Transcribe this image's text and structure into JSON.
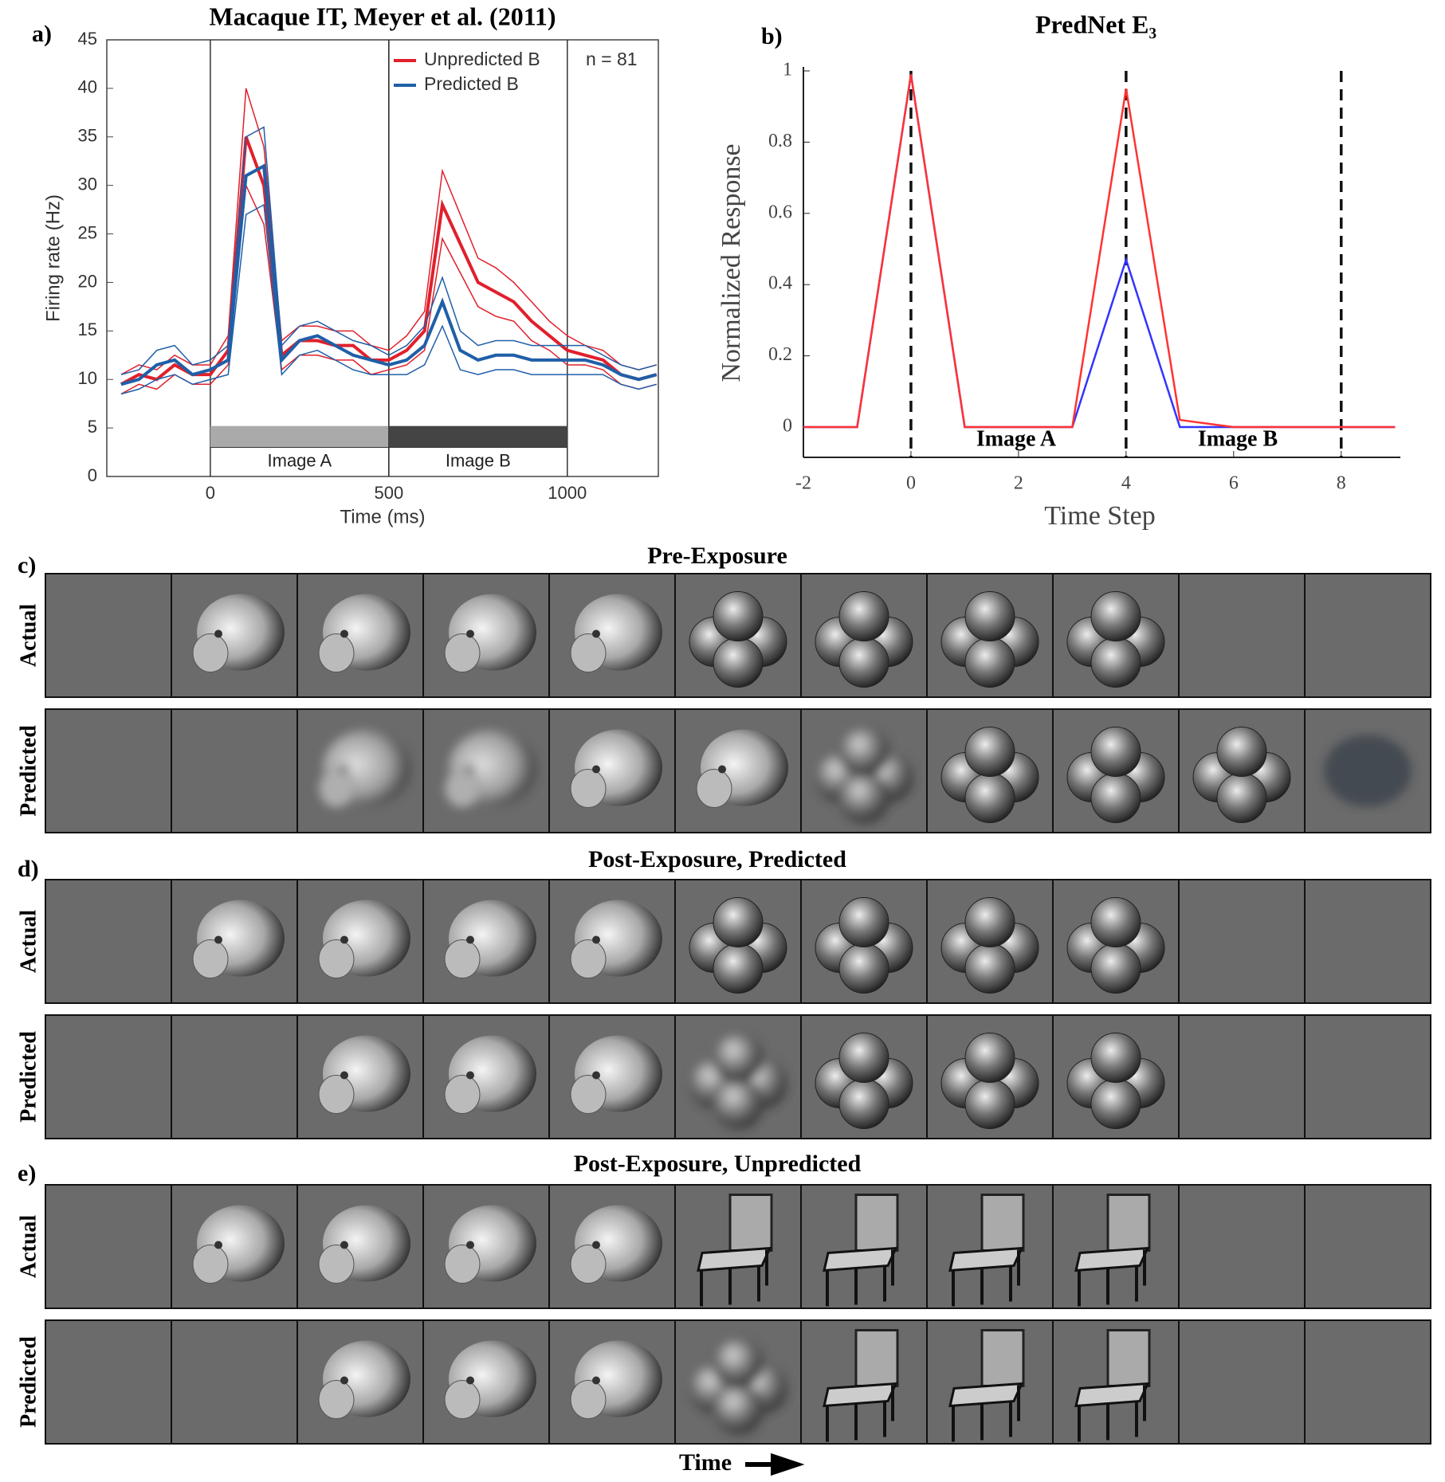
{
  "chart_data": [
    {
      "type": "line",
      "panel_label": "a)",
      "title": "Macaque IT, Meyer et al. (2011)",
      "xlabel": "Time (ms)",
      "ylabel": "Firing rate (Hz)",
      "annotation": "n = 81",
      "x": [
        -250,
        -200,
        -150,
        -100,
        -50,
        0,
        50,
        100,
        150,
        200,
        250,
        300,
        350,
        400,
        450,
        500,
        550,
        600,
        650,
        700,
        750,
        800,
        850,
        900,
        950,
        1000,
        1050,
        1100,
        1150,
        1200,
        1250
      ],
      "series": [
        {
          "name": "Unpredicted B",
          "color": "#e0202c",
          "values": [
            9.5,
            10.5,
            10,
            11.5,
            10.5,
            10.5,
            13,
            35,
            30,
            12.5,
            14,
            14,
            13.5,
            13.5,
            12,
            12,
            13,
            15,
            28,
            24,
            20,
            19,
            18,
            16,
            14.5,
            13,
            12.5,
            12,
            10.5,
            10,
            10.5
          ],
          "error": [
            1,
            1,
            1,
            1,
            1,
            1,
            1.5,
            5,
            4,
            1.5,
            1.5,
            1.5,
            1.5,
            1.5,
            1.5,
            1,
            1.5,
            2,
            3.5,
            3,
            2.5,
            2.5,
            2,
            2,
            1.5,
            1.5,
            1,
            1,
            1,
            1,
            1
          ]
        },
        {
          "name": "Predicted B",
          "color": "#1f5fa8",
          "values": [
            9.5,
            10,
            11.5,
            12,
            10.5,
            11,
            12,
            31,
            32,
            12,
            14,
            14.5,
            13.5,
            12.5,
            12,
            11.5,
            12,
            13.5,
            18,
            13,
            12,
            12.5,
            12.5,
            12,
            12,
            12,
            12,
            11.5,
            10.5,
            10,
            10.5
          ],
          "error": [
            1,
            1,
            1.5,
            1.5,
            1,
            1,
            1.5,
            4,
            4,
            1.5,
            1.5,
            1.5,
            1.5,
            1.5,
            1.5,
            1,
            1.5,
            2,
            2.5,
            2,
            1.5,
            1.5,
            1.5,
            1.5,
            1.5,
            1.5,
            1.5,
            1,
            1,
            1,
            1
          ]
        }
      ],
      "stimuli": [
        {
          "label": "Image A",
          "start": 0,
          "end": 500,
          "color": "#aaaaaa",
          "range": [
            3,
            5.2
          ]
        },
        {
          "label": "Image B",
          "start": 500,
          "end": 1000,
          "color": "#444444",
          "range": [
            3,
            5.2
          ]
        }
      ],
      "xlim": [
        -290,
        1255
      ],
      "ylim": [
        0,
        45
      ],
      "xticks": [
        0,
        500,
        1000
      ],
      "yticks": [
        0,
        5,
        10,
        15,
        20,
        25,
        30,
        35,
        40,
        45
      ]
    },
    {
      "type": "line",
      "panel_label": "b)",
      "title": "PredNet E₃",
      "xlabel": "Time Step",
      "ylabel": "Normalized Response",
      "x": [
        -2,
        -1,
        0,
        1,
        2,
        3,
        4,
        5,
        6,
        7,
        8,
        9
      ],
      "series": [
        {
          "color": "#3333ff",
          "values": [
            0,
            0,
            0.99,
            0,
            0,
            0,
            0.47,
            0,
            0,
            0,
            0,
            0
          ]
        },
        {
          "color": "#ff3333",
          "values": [
            0,
            0,
            0.99,
            0,
            0,
            0,
            0.95,
            0.02,
            0,
            0,
            0,
            0
          ]
        }
      ],
      "vlines": [
        0,
        4,
        8
      ],
      "annotations": [
        "Image A",
        "Image B"
      ],
      "xlim": [
        -2,
        9.1
      ],
      "ylim": [
        -0.085,
        1
      ],
      "xticks": [
        -2,
        0,
        2,
        4,
        6,
        8
      ],
      "yticks": [
        0,
        0.2,
        0.4,
        0.6,
        0.8,
        1
      ]
    }
  ],
  "figure_panels": [
    {
      "label": "c)",
      "title": "Pre-Exposure",
      "rows": [
        "Actual",
        "Predicted"
      ]
    },
    {
      "label": "d)",
      "title": "Post-Exposure, Predicted",
      "rows": [
        "Actual",
        "Predicted"
      ]
    },
    {
      "label": "e)",
      "title": "Post-Exposure, Unpredicted",
      "rows": [
        "Actual",
        "Predicted"
      ]
    }
  ],
  "footer": "Time"
}
